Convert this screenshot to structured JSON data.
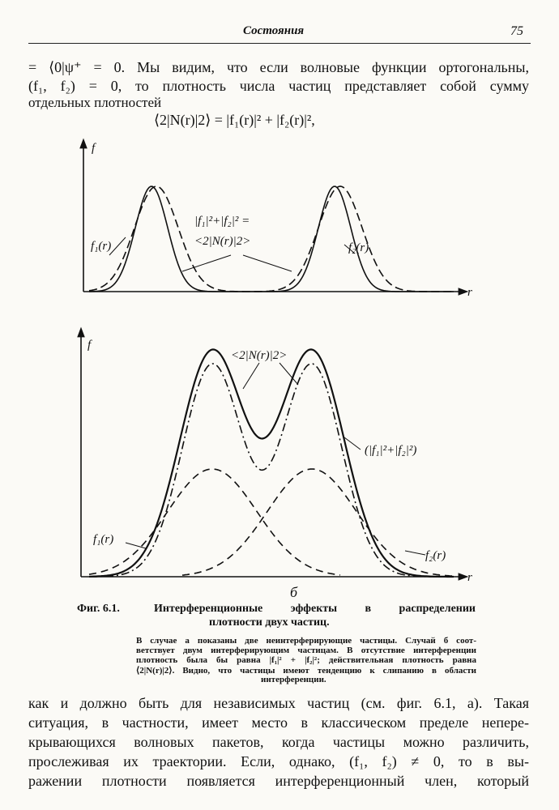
{
  "header": {
    "section": "Состояния",
    "page": "75"
  },
  "intro_lines": [
    "= ⟨0|ψ⁺ = 0. Мы видим, что если волновые функции ортогональны,",
    "(f₁, f₂) = 0, то плотность числа частиц представляет собой сумму",
    "отдельных плотностей"
  ],
  "equation": "⟨2|N(r)|2⟩ = |f₁(r)|² + |f₂(r)|²,",
  "figure_a": {
    "y_axis": "f",
    "x_axis": "r",
    "label_f1": "f₁(r)",
    "label_f2": "f₂(r)",
    "label_sum_1": "|f₁|²+|f₂|² =",
    "label_sum_2": "<2|N(r)|2>"
  },
  "figure_b": {
    "y_axis": "f",
    "x_axis": "r",
    "label_n": "<2|N(r)|2>",
    "label_sum": "(|f₁|²+|f₂|²)",
    "label_f1": "f₁(r)",
    "label_f2": "f₂(r)",
    "panel": "б"
  },
  "caption": {
    "number": "Фиг. 6.1.",
    "line_1": "Интерференционные эффекты в распределении",
    "line_2": "плотности двух частиц."
  },
  "note_lines": [
    "В случае а показаны две неинтерферирующие частицы. Случай б соот-",
    "ветствует двум интерферирующим частицам. В отсутствие интерференции",
    "плотность была бы равна |f₁|² + |f₂|²; действительная плотность равна",
    "⟨2|N(r)|2⟩. Видно, что частицы имеют тенденцию к слипанию в области",
    "интерференции."
  ],
  "body_lines": [
    "как и должно быть для независимых частиц (см. фиг. 6.1, а). Такая",
    "ситуация, в частности, имеет место в классическом пределе непере-",
    "крывающихся волновых пакетов, когда частицы можно различить,",
    "прослеживая их траектории. Если, однако, (f₁, f₂) ≠ 0, то в вы-",
    "ражении плотности появляется интерференционный член, который"
  ]
}
